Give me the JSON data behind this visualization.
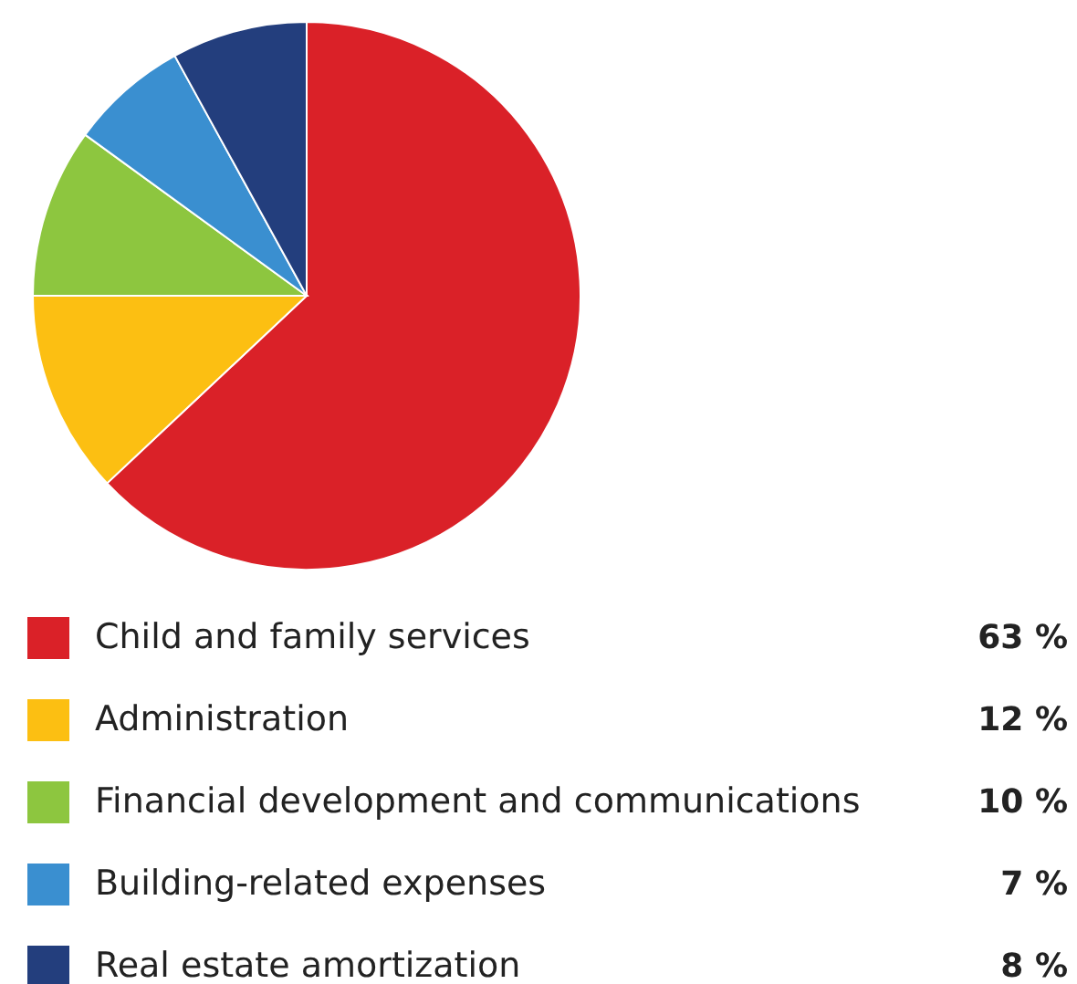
{
  "chart_data": {
    "type": "pie",
    "categories": [
      "Child and family services",
      "Administration",
      "Financial development and communications",
      "Building-related expenses",
      "Real estate amortization"
    ],
    "values": [
      63,
      12,
      10,
      7,
      8
    ],
    "value_labels": [
      "63 %",
      "12 %",
      "10 %",
      "7 %",
      "8 %"
    ],
    "colors": [
      "#da2128",
      "#fcbf12",
      "#8dc63f",
      "#3a8fd0",
      "#233e7d"
    ],
    "legend": "bottom"
  }
}
